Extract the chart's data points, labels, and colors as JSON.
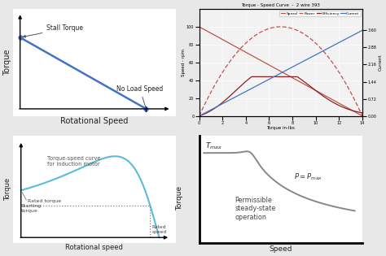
{
  "bg_color": "#e8e8e8",
  "panel_bg": "#ffffff",
  "top_left": {
    "xlabel": "Rotational Speed",
    "ylabel": "Torque",
    "line_color": "#4472C4",
    "annotation_stall": "Stall Torque",
    "annotation_noload": "No Load Speed"
  },
  "top_right": {
    "title": "Torque - Speed Curve  -  2 wire 393",
    "xlabel": "Torque in-lbs",
    "ylabel_left": "Speed - rpm",
    "ylabel_right": "Current",
    "legend": [
      "Speed",
      "Power",
      "Efficiency",
      "Current"
    ],
    "speed_color": "#C0504D",
    "power_color": "#C0504D",
    "efficiency_color": "#8B2020",
    "current_color": "#4472C4"
  },
  "bottom_left": {
    "title": "Torque-speed curve\nfor induction motor",
    "xlabel": "Rotational speed",
    "ylabel": "Torque",
    "label_starting": "Starting\ntorque",
    "label_rated_torque": "Rated torque",
    "label_rated_speed": "Rated\nspeed",
    "curve_color": "#5BBCD6"
  },
  "bottom_right": {
    "xlabel": "Speed",
    "ylabel": "Torque",
    "label_tmax": "$T_{max}$",
    "label_pmax": "$P=P_{max}$",
    "label_region": "Permissible\nsteady-state\noperation",
    "curve_color": "#888888"
  }
}
